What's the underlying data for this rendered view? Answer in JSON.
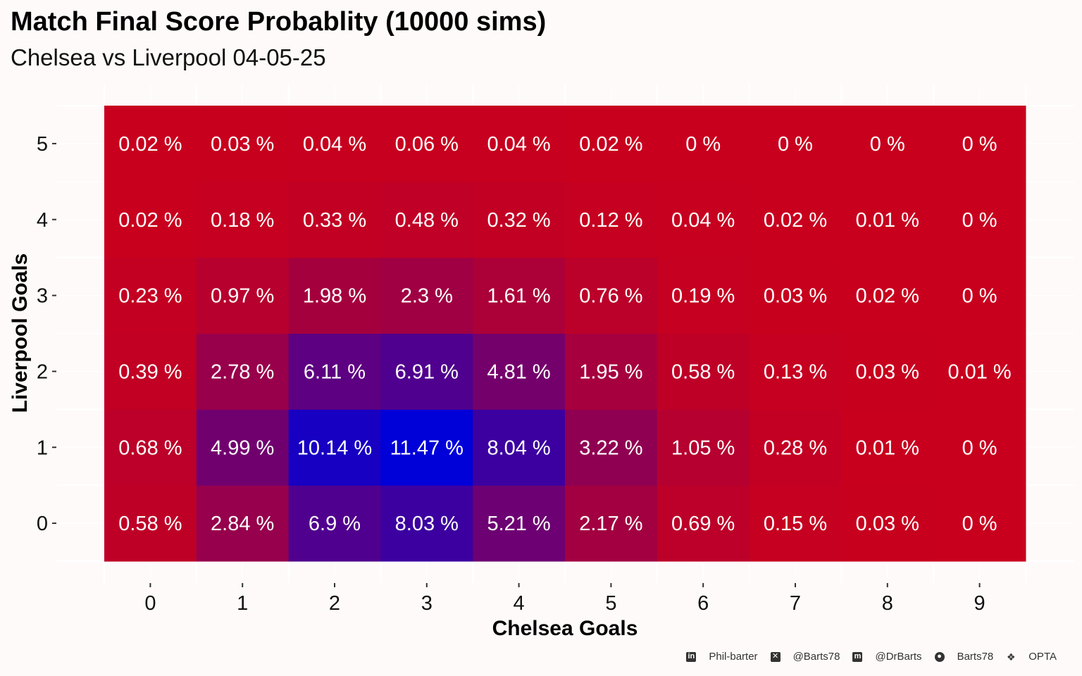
{
  "chart_data": {
    "type": "heatmap",
    "title": "Match Final Score Probablity (10000 sims)",
    "subtitle": "Chelsea vs Liverpool 04-05-25",
    "xlabel": "Chelsea Goals",
    "ylabel": "Liverpool Goals",
    "x": [
      0,
      1,
      2,
      3,
      4,
      5,
      6,
      7,
      8,
      9
    ],
    "y": [
      0,
      1,
      2,
      3,
      4,
      5
    ],
    "value_unit": " %",
    "values": [
      [
        0.58,
        2.84,
        6.9,
        8.03,
        5.21,
        2.17,
        0.69,
        0.15,
        0.03,
        0
      ],
      [
        0.68,
        4.99,
        10.14,
        11.47,
        8.04,
        3.22,
        1.05,
        0.28,
        0.01,
        0
      ],
      [
        0.39,
        2.78,
        6.11,
        6.91,
        4.81,
        1.95,
        0.58,
        0.13,
        0.03,
        0.01
      ],
      [
        0.23,
        0.97,
        1.98,
        2.3,
        1.61,
        0.76,
        0.19,
        0.03,
        0.02,
        0
      ],
      [
        0.02,
        0.18,
        0.33,
        0.48,
        0.32,
        0.12,
        0.04,
        0.02,
        0.01,
        0
      ],
      [
        0.02,
        0.03,
        0.04,
        0.06,
        0.04,
        0.02,
        0,
        0,
        0,
        0
      ]
    ],
    "color_low": "#c8001e",
    "color_high": "#0000d8",
    "grid": true,
    "legend": "none"
  },
  "footer": {
    "linkedin": "Phil-barter",
    "x_handle": "@Barts78",
    "mastodon": "@DrBarts",
    "github": "Barts78",
    "source": "OPTA"
  }
}
